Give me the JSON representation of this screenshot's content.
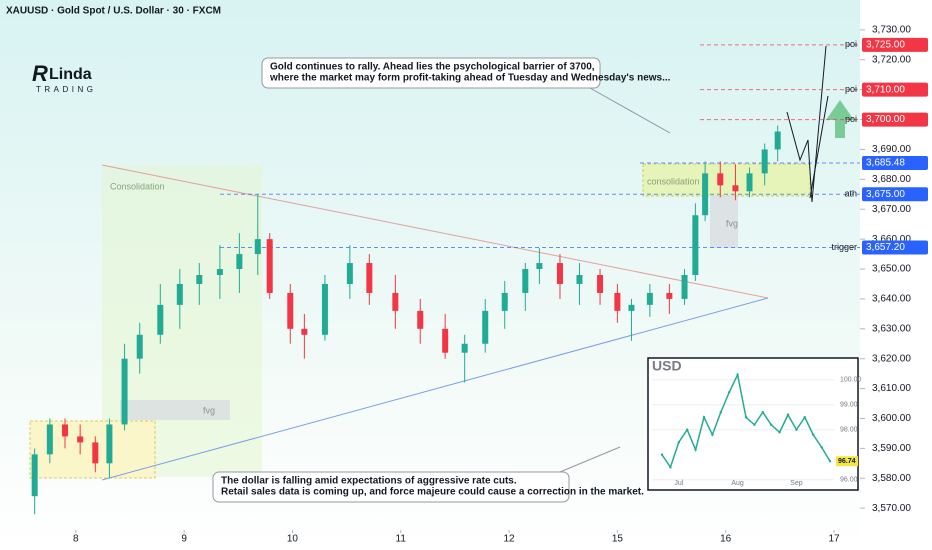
{
  "chart_data": [
    {
      "type": "candlestick",
      "title": "XAUUSD · Gold Spot / U.S. Dollar · 30 · FXCM",
      "logo": {
        "name": "Linda",
        "tagline": "TRADING"
      },
      "annotations": [
        [
          "Gold continues to rally. Ahead lies the psychological barrier of 3700,",
          "where the market may form profit-taking ahead of Tuesday and Wednesday's news..."
        ],
        [
          "The dollar is falling amid expectations of aggressive rate cuts.",
          "Retail sales data is coming up, and force majeure could cause a correction in the market."
        ]
      ],
      "zones": [
        "Consolidation",
        "consolidation",
        "fvg",
        "fvg"
      ],
      "up_color": "#22ab94",
      "down_color": "#f23645",
      "x": [
        -0.38,
        -0.24,
        -0.1,
        0.04,
        0.18,
        0.31,
        0.45,
        0.59,
        0.78,
        0.96,
        1.14,
        1.33,
        1.51,
        1.68,
        1.79,
        1.98,
        2.11,
        2.3,
        2.53,
        2.71,
        2.95,
        3.18,
        3.41,
        3.59,
        3.78,
        3.96,
        4.15,
        4.28,
        4.47,
        4.65,
        4.84,
        5.0,
        5.13,
        5.3,
        5.48,
        5.62,
        5.72,
        5.81,
        5.95,
        6.09,
        6.22,
        6.36,
        6.48
      ],
      "open": [
        3574,
        3588,
        3598,
        3594,
        3592,
        3585,
        3598,
        3620,
        3628,
        3638,
        3645,
        3648,
        3650,
        3655,
        3660,
        3642,
        3630,
        3628,
        3645,
        3652,
        3642,
        3636,
        3630,
        3622,
        3625,
        3636,
        3642,
        3650,
        3652,
        3645,
        3648,
        3642,
        3636,
        3638,
        3642,
        3640,
        3648,
        3668,
        3682,
        3678,
        3676,
        3682,
        3690
      ],
      "high": [
        3590,
        3600,
        3600,
        3598,
        3594,
        3600,
        3625,
        3632,
        3645,
        3650,
        3652,
        3658,
        3662,
        3675,
        3662,
        3645,
        3635,
        3648,
        3658,
        3655,
        3648,
        3640,
        3635,
        3628,
        3640,
        3646,
        3652,
        3657,
        3655,
        3652,
        3650,
        3645,
        3640,
        3645,
        3645,
        3650,
        3672,
        3686,
        3686,
        3685,
        3684,
        3692,
        3698
      ],
      "low": [
        3568,
        3585,
        3590,
        3588,
        3582,
        3580,
        3596,
        3615,
        3625,
        3630,
        3638,
        3640,
        3642,
        3648,
        3640,
        3625,
        3620,
        3626,
        3640,
        3638,
        3630,
        3625,
        3620,
        3612,
        3622,
        3630,
        3636,
        3645,
        3640,
        3638,
        3638,
        3632,
        3626,
        3634,
        3635,
        3638,
        3646,
        3666,
        3674,
        3673,
        3674,
        3678,
        3686
      ],
      "close": [
        3588,
        3598,
        3594,
        3592,
        3585,
        3598,
        3620,
        3628,
        3638,
        3645,
        3648,
        3650,
        3655,
        3660,
        3642,
        3630,
        3628,
        3645,
        3652,
        3642,
        3636,
        3630,
        3622,
        3625,
        3636,
        3642,
        3650,
        3652,
        3645,
        3648,
        3642,
        3636,
        3638,
        3642,
        3640,
        3648,
        3668,
        3682,
        3678,
        3676,
        3682,
        3690,
        3696
      ],
      "xlim": [
        -0.7,
        7.24
      ],
      "xticks": [
        {
          "value": 0,
          "label": "8"
        },
        {
          "value": 1,
          "label": "9"
        },
        {
          "value": 2,
          "label": "10"
        },
        {
          "value": 3,
          "label": "11"
        },
        {
          "value": 4,
          "label": "12"
        },
        {
          "value": 5,
          "label": "15"
        },
        {
          "value": 6,
          "label": "16"
        },
        {
          "value": 7,
          "label": "17"
        }
      ],
      "ylim": [
        3556,
        3740
      ],
      "yticks": [
        {
          "value": 3570,
          "label": "3,570.00"
        },
        {
          "value": 3580,
          "label": "3,580.00"
        },
        {
          "value": 3590,
          "label": "3,590.00"
        },
        {
          "value": 3600,
          "label": "3,600.00"
        },
        {
          "value": 3610,
          "label": "3,610.00"
        },
        {
          "value": 3620,
          "label": "3,620.00"
        },
        {
          "value": 3630,
          "label": "3,630.00"
        },
        {
          "value": 3640,
          "label": "3,640.00"
        },
        {
          "value": 3650,
          "label": "3,650.00"
        },
        {
          "value": 3660,
          "label": "3,660.00"
        },
        {
          "value": 3670,
          "label": "3,670.00"
        },
        {
          "value": 3680,
          "label": "3,680.00"
        },
        {
          "value": 3690,
          "label": "3,690.00"
        },
        {
          "value": 3700,
          "label": "3,700.00"
        },
        {
          "value": 3710,
          "label": "3,710.00"
        },
        {
          "value": 3720,
          "label": "3,720.00"
        },
        {
          "value": 3730,
          "label": "3,730.00"
        }
      ],
      "levels": [
        {
          "value": 3725,
          "label": "3,725.00",
          "note": "poi",
          "color": "#f23645"
        },
        {
          "value": 3710,
          "label": "3,710.00",
          "note": "poi",
          "color": "#f23645"
        },
        {
          "value": 3700,
          "label": "3,700.00",
          "note": "poi",
          "color": "#f23645"
        },
        {
          "value": 3685.48,
          "label": "3,685.48",
          "color": "#2962ff"
        },
        {
          "value": 3675,
          "label": "3,675.00",
          "note": "ath",
          "color": "#2962ff"
        },
        {
          "value": 3657.2,
          "label": "3,657.20",
          "note": "trigger",
          "color": "#2962ff"
        }
      ]
    },
    {
      "type": "line",
      "title": "USD",
      "color": "#22ab94",
      "categories": [
        null,
        null,
        "Jul",
        null,
        null,
        null,
        null,
        null,
        null,
        "Aug",
        null,
        null,
        null,
        null,
        null,
        null,
        "Sep",
        null,
        null,
        null,
        null
      ],
      "values": [
        97.0,
        96.5,
        97.5,
        98.0,
        97.2,
        98.5,
        97.8,
        98.7,
        99.5,
        100.2,
        98.5,
        98.2,
        98.7,
        98.2,
        97.9,
        98.6,
        98.0,
        98.5,
        97.8,
        97.3,
        96.74
      ],
      "value_labels": [
        null,
        null,
        null,
        null,
        null,
        null,
        null,
        null,
        null,
        null,
        null,
        null,
        null,
        null,
        null,
        null,
        null,
        null,
        null,
        null,
        "96.74"
      ],
      "ylim": [
        95.59,
        100.87
      ],
      "yticks": [
        {
          "value": 96,
          "label": "96.00"
        },
        {
          "value": 98,
          "label": "98.00"
        },
        {
          "value": 99,
          "label": "99.00"
        },
        {
          "value": 100,
          "label": "100.00"
        }
      ]
    }
  ]
}
